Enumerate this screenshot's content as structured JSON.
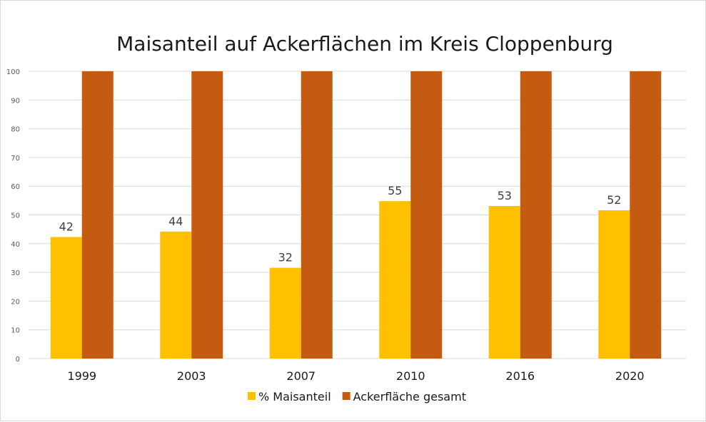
{
  "chart_data": {
    "type": "bar",
    "title": "Maisanteil auf Ackerflächen im Kreis Cloppenburg",
    "xlabel": "",
    "ylabel": "",
    "categories": [
      "1999",
      "2003",
      "2007",
      "2010",
      "2016",
      "2020"
    ],
    "series": [
      {
        "name": "% Maisanteil",
        "color": "#ffc000",
        "values": [
          42.3,
          44.2,
          31.6,
          54.8,
          53.1,
          51.6
        ],
        "data_labels": [
          "42",
          "44",
          "32",
          "55",
          "53",
          "52"
        ]
      },
      {
        "name": "Ackerfläche gesamt",
        "color": "#c55a11",
        "values": [
          100,
          100,
          100,
          100,
          100,
          100
        ]
      }
    ],
    "ylim": [
      0,
      100
    ],
    "yticks": [
      "0",
      "10",
      "20",
      "30",
      "40",
      "50",
      "60",
      "70",
      "80",
      "90",
      "100"
    ],
    "grid": true,
    "legend": "bottom"
  }
}
